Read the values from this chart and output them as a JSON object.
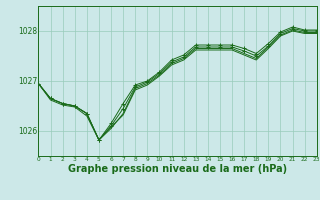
{
  "bg_color": "#cce8e8",
  "grid_color": "#99ccbb",
  "line_color": "#1a6b1a",
  "xlabel": "Graphe pression niveau de la mer (hPa)",
  "xlabel_fontsize": 7.0,
  "xlim": [
    0,
    23
  ],
  "ylim": [
    1025.5,
    1028.5
  ],
  "yticks": [
    1026,
    1027,
    1028
  ],
  "xticks": [
    0,
    1,
    2,
    3,
    4,
    5,
    6,
    7,
    8,
    9,
    10,
    11,
    12,
    13,
    14,
    15,
    16,
    17,
    18,
    19,
    20,
    21,
    22,
    23
  ],
  "line1_x": [
    0,
    1,
    2,
    3,
    4,
    5,
    6,
    7,
    8,
    9,
    10,
    11,
    12,
    13,
    14,
    15,
    16,
    17,
    18,
    19,
    20,
    21,
    22,
    23
  ],
  "line1_y": [
    1026.95,
    1026.65,
    1026.55,
    1026.5,
    1026.35,
    1025.82,
    1026.15,
    1026.55,
    1026.92,
    1027.0,
    1027.18,
    1027.42,
    1027.52,
    1027.72,
    1027.72,
    1027.72,
    1027.72,
    1027.65,
    1027.55,
    1027.75,
    1027.98,
    1028.08,
    1028.02,
    1028.02
  ],
  "line2_x": [
    0,
    1,
    2,
    3,
    4,
    5,
    6,
    7,
    8,
    9,
    10,
    11,
    12,
    13,
    14,
    15,
    16,
    17,
    18,
    19,
    20,
    21,
    22,
    23
  ],
  "line2_y": [
    1026.95,
    1026.65,
    1026.55,
    1026.5,
    1026.35,
    1025.82,
    1026.1,
    1026.45,
    1026.88,
    1026.98,
    1027.15,
    1027.38,
    1027.48,
    1027.68,
    1027.68,
    1027.68,
    1027.68,
    1027.6,
    1027.5,
    1027.7,
    1027.95,
    1028.05,
    1028.0,
    1028.0
  ],
  "line3_x": [
    0,
    1,
    2,
    3,
    4,
    5,
    6,
    7,
    8,
    9,
    10,
    11,
    12,
    13,
    14,
    15,
    16,
    17,
    18,
    19,
    20,
    21,
    22,
    23
  ],
  "line3_y": [
    1026.95,
    1026.65,
    1026.55,
    1026.5,
    1026.35,
    1025.82,
    1026.05,
    1026.35,
    1026.85,
    1026.95,
    1027.12,
    1027.35,
    1027.45,
    1027.65,
    1027.65,
    1027.65,
    1027.65,
    1027.55,
    1027.45,
    1027.68,
    1027.92,
    1028.02,
    1027.97,
    1027.97
  ],
  "line4_x": [
    0,
    1,
    2,
    3,
    4,
    5,
    6,
    7,
    8,
    9,
    10,
    11,
    12,
    13,
    14,
    15,
    16,
    17,
    18,
    19,
    20,
    21,
    22,
    23
  ],
  "line4_y": [
    1026.95,
    1026.62,
    1026.52,
    1026.48,
    1026.3,
    1025.82,
    1026.08,
    1026.32,
    1026.82,
    1026.92,
    1027.1,
    1027.32,
    1027.42,
    1027.62,
    1027.62,
    1027.62,
    1027.62,
    1027.52,
    1027.42,
    1027.65,
    1027.9,
    1028.0,
    1027.95,
    1027.95
  ]
}
